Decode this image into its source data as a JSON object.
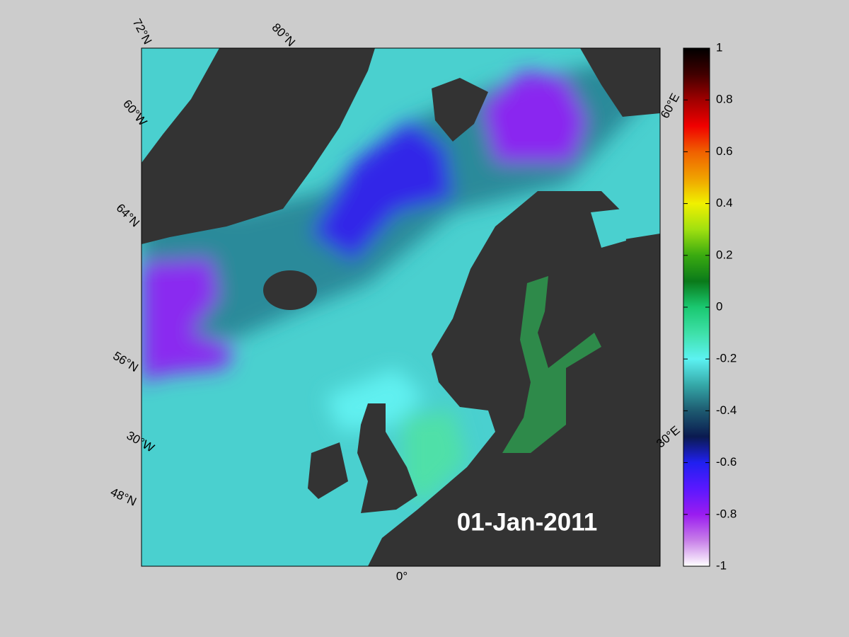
{
  "map": {
    "labels": {
      "lat": [
        "72°N",
        "80°N",
        "64°N",
        "56°N",
        "48°N"
      ],
      "lon": [
        "60°W",
        "30°W",
        "0°",
        "30°E",
        "60°E"
      ]
    },
    "date": "01-Jan-2011",
    "colorbar": {
      "lim": [
        -1,
        1
      ],
      "ticks": [
        -1,
        -0.8,
        -0.6,
        -0.4,
        -0.2,
        0,
        0.2,
        0.4,
        0.6,
        0.8,
        1
      ],
      "colormap": [
        "#ffffff",
        "#c77ee8",
        "#9a1cf0",
        "#5a18ff",
        "#2020f0",
        "#0a1a50",
        "#1d5a70",
        "#35a8a8",
        "#5cf2f2",
        "#3ee0a8",
        "#1ac870",
        "#0a7a1a",
        "#3aaa10",
        "#a0e010",
        "#f0f000",
        "#f0a000",
        "#f06000",
        "#f00000",
        "#a00000",
        "#400000",
        "#000000"
      ]
    }
  }
}
